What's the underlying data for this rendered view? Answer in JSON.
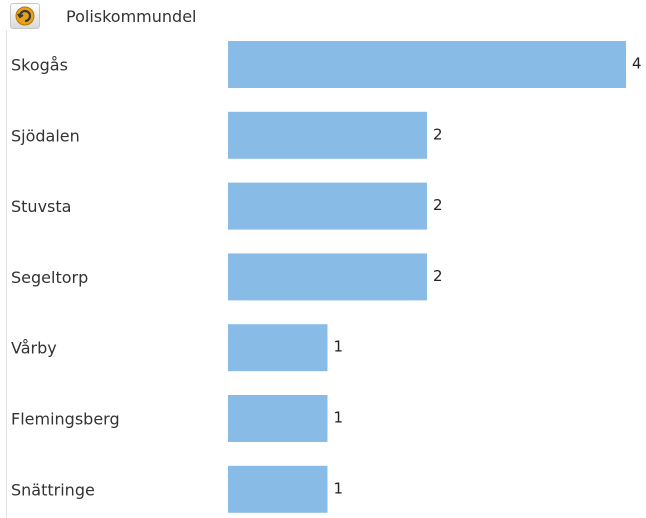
{
  "header": {
    "icon": "rotate-arrow-icon",
    "title": "Poliskommundel"
  },
  "colors": {
    "bar": "#88bce6",
    "icon_accent": "#e8a21a"
  },
  "chart_data": {
    "type": "bar",
    "orientation": "horizontal",
    "categories": [
      "Skogås",
      "Sjödalen",
      "Stuvsta",
      "Segeltorp",
      "Vårby",
      "Flemingsberg",
      "Snättringe"
    ],
    "values": [
      4,
      2,
      2,
      2,
      1,
      1,
      1
    ],
    "title": "",
    "xlabel": "",
    "ylabel": "",
    "xlim": [
      0,
      4
    ],
    "grid": false,
    "data_labels": true
  }
}
